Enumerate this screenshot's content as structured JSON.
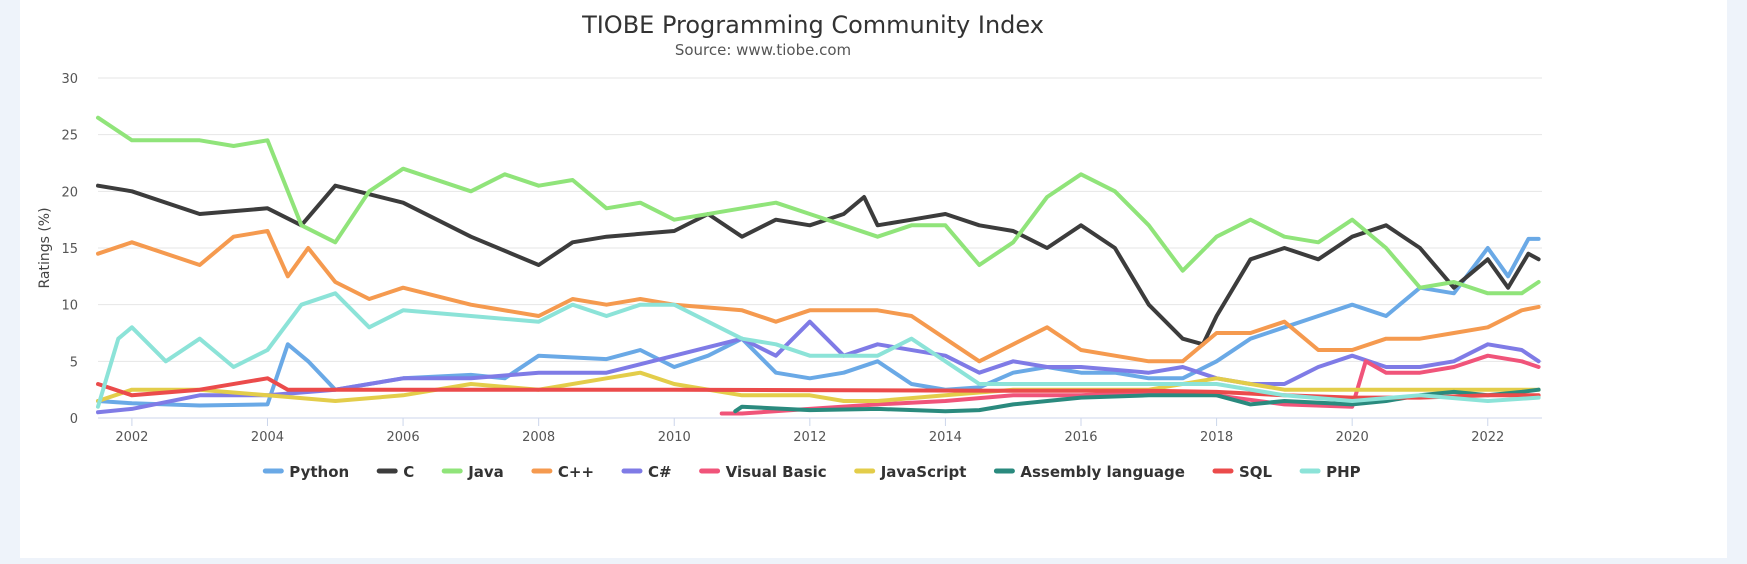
{
  "chart_data": {
    "type": "line",
    "title": "TIOBE Programming Community Index",
    "subtitle": "Source: www.tiobe.com",
    "xlabel": "",
    "ylabel": "Ratings (%)",
    "xlim": [
      2001.5,
      2022.8
    ],
    "ylim": [
      0,
      30
    ],
    "x_ticks": [
      "2002",
      "2004",
      "2006",
      "2008",
      "2010",
      "2012",
      "2014",
      "2016",
      "2018",
      "2020",
      "2022"
    ],
    "y_ticks": [
      "0",
      "5",
      "10",
      "15",
      "20",
      "25",
      "30"
    ],
    "grid": true,
    "legend_position": "bottom",
    "series": [
      {
        "name": "Python",
        "color": "#6aa9e6",
        "points": [
          [
            2001.5,
            1.5
          ],
          [
            2002,
            1.3
          ],
          [
            2003,
            1.1
          ],
          [
            2004,
            1.2
          ],
          [
            2004.3,
            6.5
          ],
          [
            2004.6,
            5
          ],
          [
            2005,
            2.5
          ],
          [
            2006,
            3.5
          ],
          [
            2007,
            3.8
          ],
          [
            2007.5,
            3.5
          ],
          [
            2008,
            5.5
          ],
          [
            2009,
            5.2
          ],
          [
            2009.5,
            6
          ],
          [
            2010,
            4.5
          ],
          [
            2010.5,
            5.5
          ],
          [
            2011,
            7
          ],
          [
            2011.5,
            4
          ],
          [
            2012,
            3.5
          ],
          [
            2012.5,
            4
          ],
          [
            2013,
            5
          ],
          [
            2013.5,
            3
          ],
          [
            2014,
            2.5
          ],
          [
            2014.5,
            2.7
          ],
          [
            2015,
            4
          ],
          [
            2015.5,
            4.5
          ],
          [
            2016,
            4
          ],
          [
            2016.5,
            4
          ],
          [
            2017,
            3.5
          ],
          [
            2017.5,
            3.5
          ],
          [
            2018,
            5
          ],
          [
            2018.5,
            7
          ],
          [
            2019,
            8
          ],
          [
            2019.5,
            9
          ],
          [
            2020,
            10
          ],
          [
            2020.5,
            9
          ],
          [
            2021,
            11.5
          ],
          [
            2021.5,
            11
          ],
          [
            2022,
            15
          ],
          [
            2022.3,
            12.5
          ],
          [
            2022.6,
            15.8
          ],
          [
            2022.75,
            15.8
          ]
        ]
      },
      {
        "name": "C",
        "color": "#3c3c3c",
        "points": [
          [
            2001.5,
            20.5
          ],
          [
            2002,
            20
          ],
          [
            2003,
            18
          ],
          [
            2004,
            18.5
          ],
          [
            2004.5,
            17
          ],
          [
            2005,
            20.5
          ],
          [
            2006,
            19
          ],
          [
            2007,
            16
          ],
          [
            2008,
            13.5
          ],
          [
            2008.5,
            15.5
          ],
          [
            2009,
            16
          ],
          [
            2010,
            16.5
          ],
          [
            2010.5,
            18
          ],
          [
            2011,
            16
          ],
          [
            2011.5,
            17.5
          ],
          [
            2012,
            17
          ],
          [
            2012.5,
            18
          ],
          [
            2012.8,
            19.5
          ],
          [
            2013,
            17
          ],
          [
            2013.5,
            17.5
          ],
          [
            2014,
            18
          ],
          [
            2014.5,
            17
          ],
          [
            2015,
            16.5
          ],
          [
            2015.5,
            15
          ],
          [
            2016,
            17
          ],
          [
            2016.5,
            15
          ],
          [
            2017,
            10
          ],
          [
            2017.5,
            7
          ],
          [
            2017.8,
            6.5
          ],
          [
            2018,
            9
          ],
          [
            2018.5,
            14
          ],
          [
            2019,
            15
          ],
          [
            2019.5,
            14
          ],
          [
            2020,
            16
          ],
          [
            2020.5,
            17
          ],
          [
            2021,
            15
          ],
          [
            2021.5,
            11.5
          ],
          [
            2022,
            14
          ],
          [
            2022.3,
            11.5
          ],
          [
            2022.6,
            14.5
          ],
          [
            2022.75,
            14
          ]
        ]
      },
      {
        "name": "Java",
        "color": "#90e47a",
        "points": [
          [
            2001.5,
            26.5
          ],
          [
            2002,
            24.5
          ],
          [
            2003,
            24.5
          ],
          [
            2003.5,
            24
          ],
          [
            2004,
            24.5
          ],
          [
            2004.5,
            17
          ],
          [
            2005,
            15.5
          ],
          [
            2005.5,
            20
          ],
          [
            2006,
            22
          ],
          [
            2007,
            20
          ],
          [
            2007.5,
            21.5
          ],
          [
            2008,
            20.5
          ],
          [
            2008.5,
            21
          ],
          [
            2009,
            18.5
          ],
          [
            2009.5,
            19
          ],
          [
            2010,
            17.5
          ],
          [
            2011,
            18.5
          ],
          [
            2011.5,
            19
          ],
          [
            2012,
            18
          ],
          [
            2012.5,
            17
          ],
          [
            2013,
            16
          ],
          [
            2013.5,
            17
          ],
          [
            2014,
            17
          ],
          [
            2014.5,
            13.5
          ],
          [
            2015,
            15.5
          ],
          [
            2015.5,
            19.5
          ],
          [
            2016,
            21.5
          ],
          [
            2016.5,
            20
          ],
          [
            2017,
            17
          ],
          [
            2017.5,
            13
          ],
          [
            2018,
            16
          ],
          [
            2018.5,
            17.5
          ],
          [
            2019,
            16
          ],
          [
            2019.5,
            15.5
          ],
          [
            2020,
            17.5
          ],
          [
            2020.5,
            15
          ],
          [
            2021,
            11.5
          ],
          [
            2021.5,
            12
          ],
          [
            2022,
            11
          ],
          [
            2022.5,
            11
          ],
          [
            2022.75,
            12
          ]
        ]
      },
      {
        "name": "C++",
        "color": "#f59a4f",
        "points": [
          [
            2001.5,
            14.5
          ],
          [
            2002,
            15.5
          ],
          [
            2003,
            13.5
          ],
          [
            2003.5,
            16
          ],
          [
            2004,
            16.5
          ],
          [
            2004.3,
            12.5
          ],
          [
            2004.6,
            15
          ],
          [
            2005,
            12
          ],
          [
            2005.5,
            10.5
          ],
          [
            2006,
            11.5
          ],
          [
            2007,
            10
          ],
          [
            2008,
            9
          ],
          [
            2008.5,
            10.5
          ],
          [
            2009,
            10
          ],
          [
            2009.5,
            10.5
          ],
          [
            2010,
            10
          ],
          [
            2011,
            9.5
          ],
          [
            2011.5,
            8.5
          ],
          [
            2012,
            9.5
          ],
          [
            2013,
            9.5
          ],
          [
            2013.5,
            9
          ],
          [
            2014,
            7
          ],
          [
            2014.5,
            5
          ],
          [
            2015,
            6.5
          ],
          [
            2015.5,
            8
          ],
          [
            2016,
            6
          ],
          [
            2016.5,
            5.5
          ],
          [
            2017,
            5
          ],
          [
            2017.5,
            5
          ],
          [
            2018,
            7.5
          ],
          [
            2018.5,
            7.5
          ],
          [
            2019,
            8.5
          ],
          [
            2019.5,
            6
          ],
          [
            2020,
            6
          ],
          [
            2020.5,
            7
          ],
          [
            2021,
            7
          ],
          [
            2021.5,
            7.5
          ],
          [
            2022,
            8
          ],
          [
            2022.5,
            9.5
          ],
          [
            2022.75,
            9.8
          ]
        ]
      },
      {
        "name": "C#",
        "color": "#7f7be6",
        "points": [
          [
            2001.5,
            0.5
          ],
          [
            2002,
            0.8
          ],
          [
            2003,
            2
          ],
          [
            2004,
            2
          ],
          [
            2005,
            2.5
          ],
          [
            2006,
            3.5
          ],
          [
            2007,
            3.5
          ],
          [
            2008,
            4
          ],
          [
            2009,
            4
          ],
          [
            2010,
            5.5
          ],
          [
            2011,
            7
          ],
          [
            2011.5,
            5.5
          ],
          [
            2012,
            8.5
          ],
          [
            2012.5,
            5.5
          ],
          [
            2013,
            6.5
          ],
          [
            2014,
            5.5
          ],
          [
            2014.5,
            4
          ],
          [
            2015,
            5
          ],
          [
            2015.5,
            4.5
          ],
          [
            2016,
            4.5
          ],
          [
            2017,
            4
          ],
          [
            2017.5,
            4.5
          ],
          [
            2018,
            3.5
          ],
          [
            2018.5,
            3
          ],
          [
            2019,
            3
          ],
          [
            2019.5,
            4.5
          ],
          [
            2020,
            5.5
          ],
          [
            2020.5,
            4.5
          ],
          [
            2021,
            4.5
          ],
          [
            2021.5,
            5
          ],
          [
            2022,
            6.5
          ],
          [
            2022.5,
            6
          ],
          [
            2022.75,
            5
          ]
        ]
      },
      {
        "name": "Visual Basic",
        "color": "#f0547a",
        "points": [
          [
            2010.7,
            0.4
          ],
          [
            2011,
            0.4
          ],
          [
            2012,
            0.8
          ],
          [
            2013,
            1.2
          ],
          [
            2014,
            1.5
          ],
          [
            2015,
            2
          ],
          [
            2016,
            2
          ],
          [
            2017,
            2.3
          ],
          [
            2018,
            2
          ],
          [
            2019,
            1.2
          ],
          [
            2020,
            1
          ],
          [
            2020.2,
            5
          ],
          [
            2020.5,
            4
          ],
          [
            2021,
            4
          ],
          [
            2021.5,
            4.5
          ],
          [
            2022,
            5.5
          ],
          [
            2022.5,
            5
          ],
          [
            2022.75,
            4.5
          ]
        ]
      },
      {
        "name": "JavaScript",
        "color": "#e3cd4a",
        "points": [
          [
            2001.5,
            1.5
          ],
          [
            2002,
            2.5
          ],
          [
            2003,
            2.5
          ],
          [
            2004,
            2
          ],
          [
            2005,
            1.5
          ],
          [
            2006,
            2
          ],
          [
            2007,
            3
          ],
          [
            2008,
            2.5
          ],
          [
            2009,
            3.5
          ],
          [
            2009.5,
            4
          ],
          [
            2010,
            3
          ],
          [
            2011,
            2
          ],
          [
            2012,
            2
          ],
          [
            2012.5,
            1.5
          ],
          [
            2013,
            1.5
          ],
          [
            2014,
            2
          ],
          [
            2015,
            2.5
          ],
          [
            2016,
            2.5
          ],
          [
            2017,
            2.5
          ],
          [
            2018,
            3.5
          ],
          [
            2019,
            2.5
          ],
          [
            2020,
            2.5
          ],
          [
            2021,
            2.5
          ],
          [
            2022,
            2.5
          ],
          [
            2022.75,
            2.5
          ]
        ]
      },
      {
        "name": "Assembly language",
        "color": "#2a8a7e",
        "points": [
          [
            2010.9,
            0.6
          ],
          [
            2011,
            1
          ],
          [
            2012,
            0.7
          ],
          [
            2013,
            0.8
          ],
          [
            2014,
            0.6
          ],
          [
            2014.5,
            0.7
          ],
          [
            2015,
            1.2
          ],
          [
            2016,
            1.8
          ],
          [
            2017,
            2
          ],
          [
            2018,
            2
          ],
          [
            2018.5,
            1.2
          ],
          [
            2019,
            1.5
          ],
          [
            2020,
            1.2
          ],
          [
            2020.5,
            1.5
          ],
          [
            2021,
            2
          ],
          [
            2021.5,
            2.3
          ],
          [
            2022,
            2
          ],
          [
            2022.5,
            2.3
          ],
          [
            2022.75,
            2.5
          ]
        ]
      },
      {
        "name": "SQL",
        "color": "#eb4b4b",
        "points": [
          [
            2001.5,
            3
          ],
          [
            2002,
            2
          ],
          [
            2003,
            2.5
          ],
          [
            2004,
            3.5
          ],
          [
            2004.3,
            2.5
          ],
          [
            2005,
            2.5
          ],
          [
            2010,
            2.5
          ],
          [
            2015,
            2.4
          ],
          [
            2017,
            2.4
          ],
          [
            2018,
            2.3
          ],
          [
            2019,
            2
          ],
          [
            2020,
            1.8
          ],
          [
            2021,
            1.8
          ],
          [
            2022,
            2
          ],
          [
            2022.75,
            2
          ]
        ]
      },
      {
        "name": "PHP",
        "color": "#8ce3d8",
        "points": [
          [
            2001.5,
            1
          ],
          [
            2001.8,
            7
          ],
          [
            2002,
            8
          ],
          [
            2002.5,
            5
          ],
          [
            2003,
            7
          ],
          [
            2003.5,
            4.5
          ],
          [
            2004,
            6
          ],
          [
            2004.5,
            10
          ],
          [
            2005,
            11
          ],
          [
            2005.5,
            8
          ],
          [
            2006,
            9.5
          ],
          [
            2007,
            9
          ],
          [
            2008,
            8.5
          ],
          [
            2008.5,
            10
          ],
          [
            2009,
            9
          ],
          [
            2009.5,
            10
          ],
          [
            2010,
            10
          ],
          [
            2010.5,
            8.5
          ],
          [
            2011,
            7
          ],
          [
            2011.5,
            6.5
          ],
          [
            2012,
            5.5
          ],
          [
            2013,
            5.5
          ],
          [
            2013.5,
            7
          ],
          [
            2014,
            5
          ],
          [
            2014.5,
            3
          ],
          [
            2015,
            3
          ],
          [
            2016,
            3
          ],
          [
            2017,
            3
          ],
          [
            2018,
            3
          ],
          [
            2019,
            2
          ],
          [
            2020,
            1.5
          ],
          [
            2021,
            2
          ],
          [
            2022,
            1.5
          ],
          [
            2022.75,
            1.8
          ]
        ]
      }
    ]
  }
}
